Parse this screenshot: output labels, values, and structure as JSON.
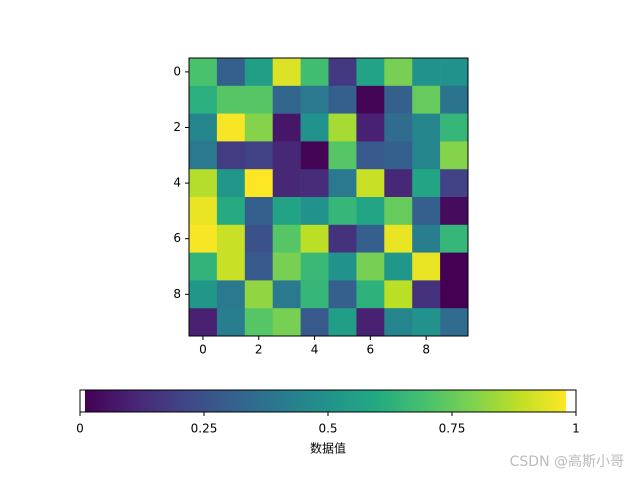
{
  "chart_data": {
    "type": "heatmap",
    "colormap": "viridis",
    "z": [
      [
        0.7,
        0.3,
        0.55,
        0.93,
        0.68,
        0.17,
        0.57,
        0.78,
        0.5,
        0.5
      ],
      [
        0.62,
        0.72,
        0.72,
        0.33,
        0.4,
        0.3,
        0.02,
        0.3,
        0.75,
        0.38
      ],
      [
        0.45,
        0.97,
        0.8,
        0.07,
        0.5,
        0.85,
        0.1,
        0.35,
        0.45,
        0.65
      ],
      [
        0.4,
        0.18,
        0.2,
        0.12,
        0.02,
        0.72,
        0.28,
        0.3,
        0.45,
        0.8
      ],
      [
        0.87,
        0.52,
        0.98,
        0.12,
        0.13,
        0.4,
        0.9,
        0.12,
        0.58,
        0.2
      ],
      [
        0.95,
        0.6,
        0.3,
        0.57,
        0.5,
        0.65,
        0.58,
        0.75,
        0.3,
        0.04
      ],
      [
        0.97,
        0.9,
        0.25,
        0.72,
        0.88,
        0.15,
        0.3,
        0.95,
        0.42,
        0.65
      ],
      [
        0.64,
        0.9,
        0.28,
        0.78,
        0.66,
        0.5,
        0.78,
        0.52,
        0.95,
        0.01
      ],
      [
        0.52,
        0.4,
        0.82,
        0.4,
        0.65,
        0.3,
        0.63,
        0.88,
        0.15,
        0.01
      ],
      [
        0.1,
        0.42,
        0.72,
        0.78,
        0.28,
        0.55,
        0.1,
        0.45,
        0.5,
        0.35
      ]
    ],
    "xlim": [
      -0.5,
      9.5
    ],
    "ylim": [
      9.5,
      -0.5
    ],
    "xticks": [
      0,
      2,
      4,
      6,
      8
    ],
    "yticks": [
      0,
      2,
      4,
      6,
      8
    ],
    "colorbar": {
      "label": "数据值",
      "lim": [
        0,
        1
      ],
      "ticks": [
        0,
        0.25,
        0.5,
        0.75,
        1
      ]
    }
  },
  "watermark": "CSDN @高斯小哥"
}
